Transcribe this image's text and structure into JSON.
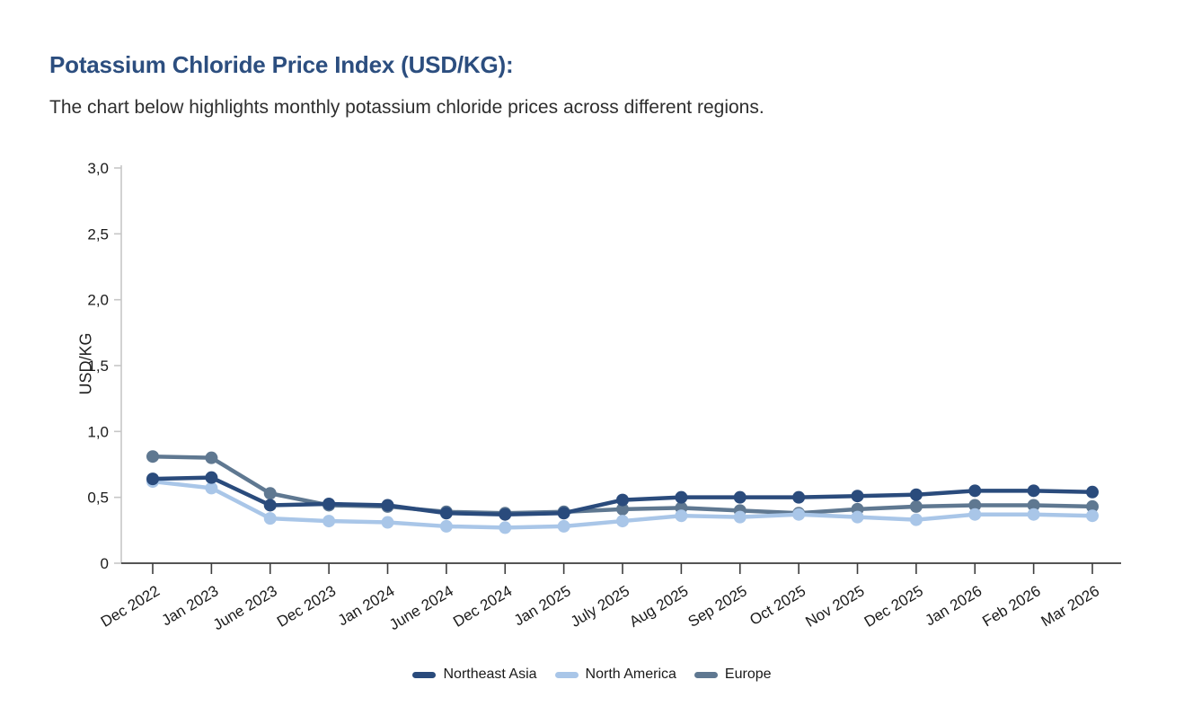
{
  "page": {
    "title": "Potassium Chloride Price Index (USD/KG):",
    "subtitle": "The chart below highlights monthly potassium chloride prices across different regions."
  },
  "colors": {
    "title_text": "#2c4e7f",
    "body_text": "#2e2e2e",
    "y_axis": "#c6c6c6",
    "x_axis": "#3d3d3d",
    "tick_label": "#1a1a1a"
  },
  "chart_data": {
    "type": "line",
    "title": "",
    "xlabel": "",
    "ylabel": "USD/KG",
    "ylim": [
      0,
      3.0
    ],
    "grid": false,
    "legend_position": "bottom",
    "markers": true,
    "y_ticks": [
      0,
      0.5,
      1.0,
      1.5,
      2.0,
      2.5,
      3.0
    ],
    "y_tick_labels": [
      "0",
      "0,5",
      "1,0",
      "1,5",
      "2,0",
      "2,5",
      "3,0"
    ],
    "categories": [
      "Dec 2022",
      "Jan 2023",
      "June 2023",
      "Dec 2023",
      "Jan 2024",
      "June 2024",
      "Dec 2024",
      "Jan 2025",
      "July 2025",
      "Aug 2025",
      "Sep 2025",
      "Oct 2025",
      "Nov 2025",
      "Dec 2025",
      "Jan 2026",
      "Feb 2026",
      "Mar 2026"
    ],
    "series": [
      {
        "name": "Northeast Asia",
        "color": "#2a4b7c",
        "values": [
          0.64,
          0.65,
          0.44,
          0.45,
          0.44,
          0.38,
          0.37,
          0.38,
          0.48,
          0.5,
          0.5,
          0.5,
          0.51,
          0.52,
          0.55,
          0.55,
          0.54
        ]
      },
      {
        "name": "North America",
        "color": "#a9c6e8",
        "values": [
          0.62,
          0.57,
          0.34,
          0.32,
          0.31,
          0.28,
          0.27,
          0.28,
          0.32,
          0.36,
          0.35,
          0.37,
          0.35,
          0.33,
          0.37,
          0.37,
          0.36
        ]
      },
      {
        "name": "Europe",
        "color": "#5f7891",
        "values": [
          0.81,
          0.8,
          0.53,
          0.44,
          0.43,
          0.39,
          0.38,
          0.39,
          0.41,
          0.42,
          0.4,
          0.38,
          0.41,
          0.43,
          0.44,
          0.44,
          0.43
        ]
      }
    ],
    "z_order": [
      "Europe",
      "North America",
      "Northeast Asia"
    ]
  }
}
